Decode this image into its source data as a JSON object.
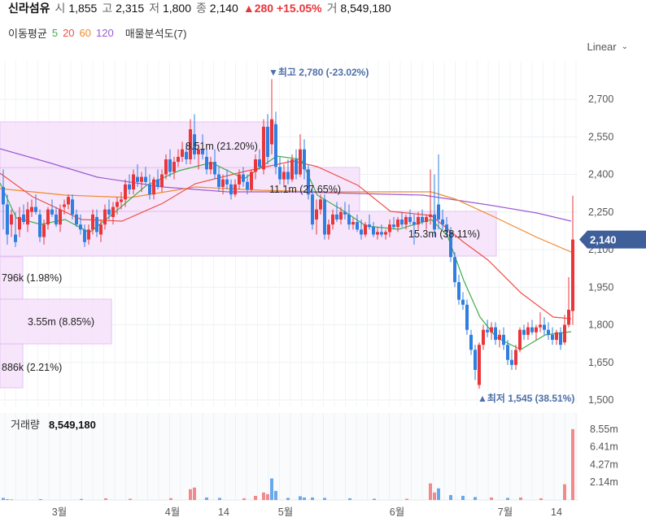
{
  "header": {
    "name": "신라섬유",
    "open_label": "시",
    "open": "1,855",
    "high_label": "고",
    "high": "2,315",
    "low_label": "저",
    "low": "1,800",
    "close_label": "종",
    "close": "2,140",
    "change_arrow": "▲",
    "change": "280",
    "change_pct": "+15.05%",
    "value_label": "거",
    "value": "8,549,180"
  },
  "indicators": {
    "title": "이동평균",
    "periods": [
      {
        "label": "5",
        "color": "#3fae49"
      },
      {
        "label": "20",
        "color": "#f0504a"
      },
      {
        "label": "60",
        "color": "#ee8a2b"
      },
      {
        "label": "120",
        "color": "#9b59d6"
      }
    ],
    "volume_profile": "매물분석도(7)"
  },
  "scale_mode": "Linear",
  "colors": {
    "up": "#e8363b",
    "down": "#2f7fe0",
    "profile_fill": "#f6e2fb",
    "profile_stroke": "#e2b9ef",
    "price_tag": "#3f5f9a"
  },
  "chart_data": {
    "type": "candlestick",
    "ylim": [
      1480,
      2820
    ],
    "y_ticks": [
      "2,700",
      "2,550",
      "2,400",
      "2,250",
      "2,100",
      "1,950",
      "1,800",
      "1,650",
      "1,500"
    ],
    "y_tick_values": [
      2700,
      2550,
      2400,
      2250,
      2100,
      1950,
      1800,
      1650,
      1500
    ],
    "x_ticks": [
      "3월",
      "4월",
      "14",
      "5월",
      "6월",
      "7월",
      "14"
    ],
    "last_price_label": "2,140",
    "last_price": 2140,
    "max_annotation": {
      "arrow": "▼",
      "text": "최고",
      "value": "2,780",
      "pct": "(-23.02%)"
    },
    "min_annotation": {
      "arrow": "▲",
      "text": "최저",
      "value": "1,545",
      "pct": "(38.51%)"
    },
    "volume_profile": [
      {
        "label": "8.51m",
        "pct": "(21.20%)"
      },
      {
        "label": "11.1m",
        "pct": "(27.65%)"
      },
      {
        "label": "15.3m",
        "pct": "(38.11%)"
      },
      {
        "label": "796k",
        "pct": "(1.98%)"
      },
      {
        "label": "3.55m",
        "pct": "(8.85%)"
      },
      {
        "label": "886k",
        "pct": "(2.21%)"
      }
    ],
    "volume": {
      "title": "거래량",
      "last": "8,549,180",
      "ticks": [
        "8.55m",
        "6.41m",
        "4.27m",
        "2.14m"
      ],
      "tick_values": [
        8.55,
        6.41,
        4.27,
        2.14
      ],
      "ymax": 10.5
    }
  }
}
